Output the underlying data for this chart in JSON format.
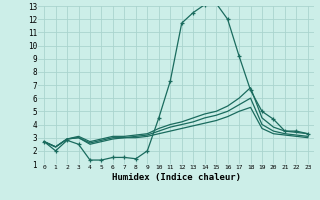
{
  "xlabel": "Humidex (Indice chaleur)",
  "background_color": "#cceee8",
  "grid_color": "#aad4ce",
  "line_color": "#1a6b5e",
  "xlim": [
    -0.5,
    23.5
  ],
  "ylim": [
    1,
    13
  ],
  "xticks": [
    0,
    1,
    2,
    3,
    4,
    5,
    6,
    7,
    8,
    9,
    10,
    11,
    12,
    13,
    14,
    15,
    16,
    17,
    18,
    19,
    20,
    21,
    22,
    23
  ],
  "yticks": [
    1,
    2,
    3,
    4,
    5,
    6,
    7,
    8,
    9,
    10,
    11,
    12,
    13
  ],
  "lines": [
    {
      "x": [
        0,
        1,
        2,
        3,
        4,
        5,
        6,
        7,
        8,
        9,
        10,
        11,
        12,
        13,
        14,
        15,
        16,
        17,
        18,
        19,
        20,
        21,
        22,
        23
      ],
      "y": [
        2.7,
        2.0,
        2.8,
        2.5,
        1.3,
        1.3,
        1.5,
        1.5,
        1.4,
        2.0,
        4.5,
        7.3,
        11.7,
        12.5,
        13.1,
        13.2,
        12.0,
        9.2,
        6.6,
        5.0,
        4.4,
        3.5,
        3.5,
        3.3
      ],
      "marker": true
    },
    {
      "x": [
        0,
        1,
        2,
        3,
        4,
        5,
        6,
        7,
        8,
        9,
        10,
        11,
        12,
        13,
        14,
        15,
        16,
        17,
        18,
        19,
        20,
        21,
        22,
        23
      ],
      "y": [
        2.7,
        2.3,
        2.9,
        3.1,
        2.7,
        2.9,
        3.1,
        3.1,
        3.2,
        3.3,
        3.7,
        4.0,
        4.2,
        4.5,
        4.8,
        5.0,
        5.4,
        6.0,
        6.8,
        4.5,
        3.8,
        3.5,
        3.4,
        3.3
      ],
      "marker": false
    },
    {
      "x": [
        0,
        1,
        2,
        3,
        4,
        5,
        6,
        7,
        8,
        9,
        10,
        11,
        12,
        13,
        14,
        15,
        16,
        17,
        18,
        19,
        20,
        21,
        22,
        23
      ],
      "y": [
        2.7,
        2.3,
        2.9,
        3.0,
        2.6,
        2.8,
        3.0,
        3.0,
        3.1,
        3.2,
        3.5,
        3.8,
        4.0,
        4.2,
        4.5,
        4.7,
        5.0,
        5.5,
        6.0,
        4.0,
        3.5,
        3.3,
        3.2,
        3.1
      ],
      "marker": false
    },
    {
      "x": [
        0,
        1,
        2,
        3,
        4,
        5,
        6,
        7,
        8,
        9,
        10,
        11,
        12,
        13,
        14,
        15,
        16,
        17,
        18,
        19,
        20,
        21,
        22,
        23
      ],
      "y": [
        2.7,
        2.3,
        2.9,
        3.0,
        2.5,
        2.7,
        2.9,
        3.0,
        3.0,
        3.1,
        3.3,
        3.5,
        3.7,
        3.9,
        4.1,
        4.3,
        4.6,
        5.0,
        5.3,
        3.7,
        3.3,
        3.2,
        3.1,
        3.0
      ],
      "marker": false
    }
  ]
}
